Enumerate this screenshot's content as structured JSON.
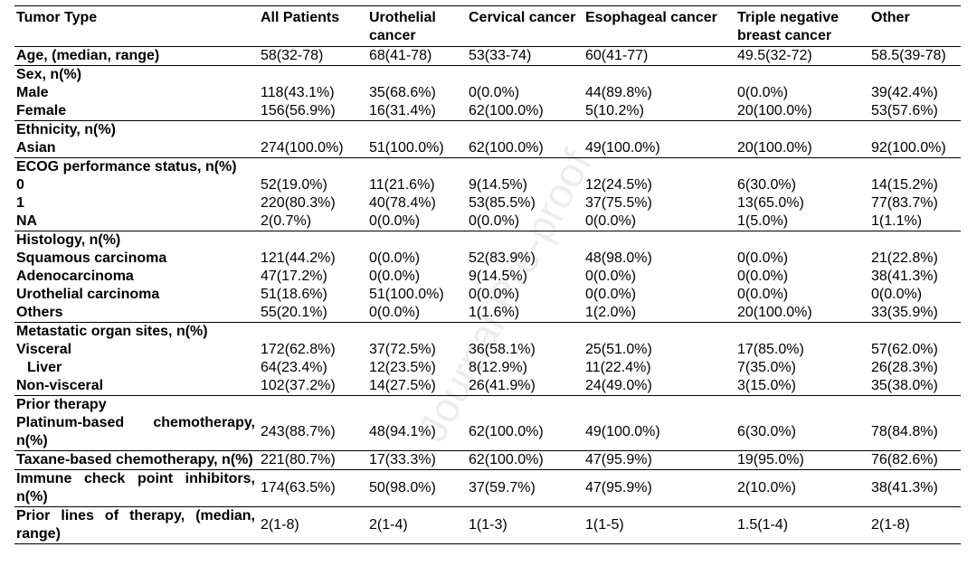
{
  "header": [
    "Tumor Type",
    "All Patients",
    "Urothelial cancer",
    "Cervical cancer",
    "Esophageal cancer",
    "Triple negative breast cancer",
    "Other"
  ],
  "table": {
    "groups": [
      [
        [
          "Age, (median, range)",
          "58(32-78)",
          "68(41-78)",
          "53(33-74)",
          "60(41-77)",
          "49.5(32-72)",
          "58.5(39-78)"
        ]
      ],
      [
        [
          "Sex, n(%)"
        ],
        [
          "Male",
          "118(43.1%)",
          "35(68.6%)",
          "0(0.0%)",
          "44(89.8%)",
          "0(0.0%)",
          "39(42.4%)"
        ],
        [
          "Female",
          "156(56.9%)",
          "16(31.4%)",
          "62(100.0%)",
          "5(10.2%)",
          "20(100.0%)",
          "53(57.6%)"
        ]
      ],
      [
        [
          "Ethnicity, n(%)"
        ],
        [
          "Asian",
          "274(100.0%)",
          "51(100.0%)",
          "62(100.0%)",
          "49(100.0%)",
          "20(100.0%)",
          "92(100.0%)"
        ]
      ],
      [
        [
          "ECOG performance status, n(%)"
        ],
        [
          "0",
          "52(19.0%)",
          "11(21.6%)",
          "9(14.5%)",
          "12(24.5%)",
          "6(30.0%)",
          "14(15.2%)"
        ],
        [
          "1",
          "220(80.3%)",
          "40(78.4%)",
          "53(85.5%)",
          "37(75.5%)",
          "13(65.0%)",
          "77(83.7%)"
        ],
        [
          "NA",
          "2(0.7%)",
          "0(0.0%)",
          "0(0.0%)",
          "0(0.0%)",
          "1(5.0%)",
          "1(1.1%)"
        ]
      ],
      [
        [
          "Histology, n(%)"
        ],
        [
          "Squamous carcinoma",
          "121(44.2%)",
          "0(0.0%)",
          "52(83.9%)",
          "48(98.0%)",
          "0(0.0%)",
          "21(22.8%)"
        ],
        [
          "Adenocarcinoma",
          "47(17.2%)",
          "0(0.0%)",
          "9(14.5%)",
          "0(0.0%)",
          "0(0.0%)",
          "38(41.3%)"
        ],
        [
          "Urothelial carcinoma",
          "51(18.6%)",
          "51(100.0%)",
          "0(0.0%)",
          "0(0.0%)",
          "0(0.0%)",
          "0(0.0%)"
        ],
        [
          "Others",
          "55(20.1%)",
          "0(0.0%)",
          "1(1.6%)",
          "1(2.0%)",
          "20(100.0%)",
          "33(35.9%)"
        ]
      ],
      [
        [
          "Metastatic organ sites, n(%)"
        ],
        [
          "Visceral",
          "172(62.8%)",
          "37(72.5%)",
          "36(58.1%)",
          "25(51.0%)",
          "17(85.0%)",
          "57(62.0%)"
        ],
        [
          "Liver",
          "64(23.4%)",
          "12(23.5%)",
          "8(12.9%)",
          "11(22.4%)",
          "7(35.0%)",
          "26(28.3%)"
        ],
        [
          "Non-visceral",
          "102(37.2%)",
          "14(27.5%)",
          "26(41.9%)",
          "24(49.0%)",
          "3(15.0%)",
          "35(38.0%)"
        ]
      ],
      [
        [
          "Prior therapy"
        ],
        [
          "Platinum-based chemotherapy, n(%)",
          "243(88.7%)",
          "48(94.1%)",
          "62(100.0%)",
          "49(100.0%)",
          "6(30.0%)",
          "78(84.8%)"
        ]
      ],
      [
        [
          "Taxane-based chemotherapy, n(%)",
          "221(80.7%)",
          "17(33.3%)",
          "62(100.0%)",
          "47(95.9%)",
          "19(95.0%)",
          "76(82.6%)"
        ]
      ],
      [
        [
          "Immune check point inhibitors, n(%)",
          "174(63.5%)",
          "50(98.0%)",
          "37(59.7%)",
          "47(95.9%)",
          "2(10.0%)",
          "38(41.3%)"
        ]
      ],
      [
        [
          "Prior lines of therapy, (median, range)",
          "2(1-8)",
          "2(1-4)",
          "1(1-3)",
          "1(1-5)",
          "1.5(1-4)",
          "2(1-8)"
        ]
      ]
    ]
  },
  "watermark": "Journal Pre-proof"
}
